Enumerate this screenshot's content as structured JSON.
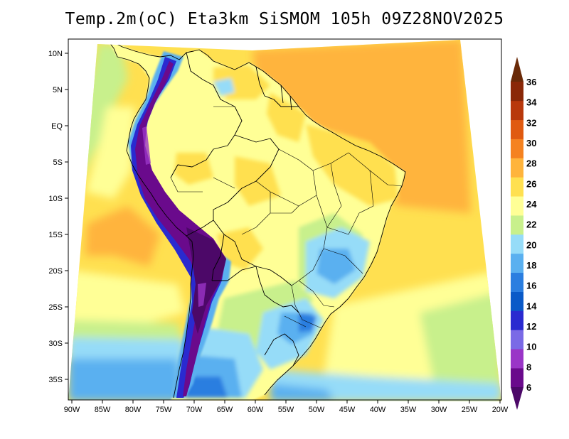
{
  "title": "Temp.2m(oC) Eta3km SiSMOM 105h 09Z28NOV2025",
  "lat_labels": [
    "10N",
    "5N",
    "EQ",
    "5S",
    "10S",
    "15S",
    "20S",
    "25S",
    "30S",
    "35S"
  ],
  "lon_labels": [
    "90W",
    "85W",
    "80W",
    "75W",
    "70W",
    "65W",
    "60W",
    "55W",
    "50W",
    "45W",
    "40W",
    "35W",
    "30W",
    "25W",
    "20W"
  ],
  "legend": {
    "labels": [
      "6",
      "8",
      "10",
      "12",
      "14",
      "16",
      "18",
      "20",
      "22",
      "24",
      "26",
      "28",
      "30",
      "32",
      "34",
      "36"
    ],
    "colors": [
      "#6a0a8c",
      "#9a35c7",
      "#7a6ae6",
      "#2a2ad0",
      "#0a5ac8",
      "#2a7ee0",
      "#5ab0f0",
      "#96dcf8",
      "#c8f08c",
      "#ffff96",
      "#ffe050",
      "#ffb43c",
      "#f58220",
      "#e05a10",
      "#b8380c",
      "#8a2808"
    ],
    "arrow_low_color": "#4c0868",
    "arrow_high_color": "#6a2a08"
  },
  "chart_data": {
    "type": "heatmap",
    "title": "Temp.2m(oC) Eta3km SiSMOM 105h 09Z28NOV2025",
    "variable": "2 m air temperature",
    "units": "oC",
    "forecast_hour": "105h",
    "valid_time": "09Z28NOV2025",
    "lon_range": [
      -91,
      -20
    ],
    "lat_range": [
      -38.5,
      11.5
    ],
    "colorbar_levels": [
      6,
      8,
      10,
      12,
      14,
      16,
      18,
      20,
      22,
      24,
      26,
      28,
      30,
      32,
      34,
      36
    ],
    "xlabel": "",
    "ylabel": ""
  }
}
